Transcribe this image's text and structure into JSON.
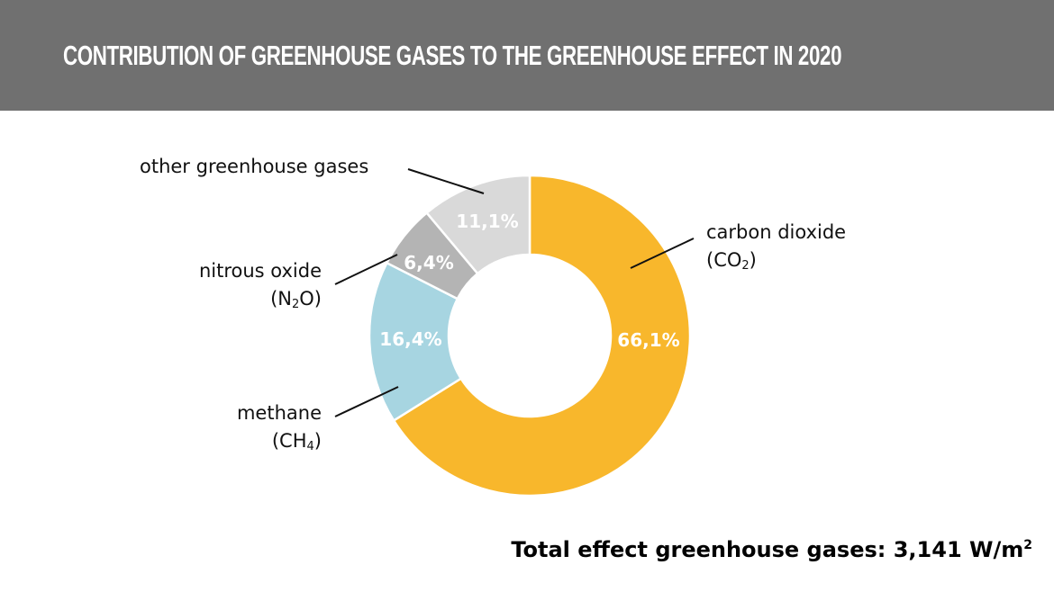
{
  "header": {
    "title": "CONTRIBUTION OF GREENHOUSE GASES TO THE GREENHOUSE EFFECT IN 2020",
    "background": "#707070"
  },
  "labels": {
    "co2_name": "carbon dioxide",
    "co2_formula_pre": "(CO",
    "co2_formula_sub": "2",
    "co2_formula_post": ")",
    "ch4_name": "methane",
    "ch4_formula_pre": "(CH",
    "ch4_formula_sub": "4",
    "ch4_formula_post": ")",
    "n2o_name": "nitrous oxide",
    "n2o_formula_pre": "(N",
    "n2o_formula_sub": "2",
    "n2o_formula_post": "O)",
    "other_name": "other greenhouse gases"
  },
  "percent_labels": {
    "co2": "66,1%",
    "ch4": "16,4%",
    "n2o": "6,4%",
    "other": "11,1%"
  },
  "footer": {
    "total_text": "Total effect greenhouse gases: 3,141 W/m",
    "total_sup": "2"
  },
  "chart_data": {
    "type": "pie",
    "variant": "donut",
    "title": "Contribution of greenhouse gases to the greenhouse effect in 2020",
    "categories": [
      "carbon dioxide (CO2)",
      "methane (CH4)",
      "nitrous oxide (N2O)",
      "other greenhouse gases"
    ],
    "values": [
      66.1,
      16.4,
      6.4,
      11.1
    ],
    "value_labels": [
      "66,1%",
      "16,4%",
      "6,4%",
      "11,1%"
    ],
    "colors": [
      "#F8B72C",
      "#A7D5E1",
      "#B4B4B4",
      "#D9D9D9"
    ],
    "start_angle": "12 o'clock, clockwise",
    "annotation": "Total effect greenhouse gases: 3,141 W/m²",
    "unit": "%",
    "legend": "none (callout labels with leader lines)"
  }
}
